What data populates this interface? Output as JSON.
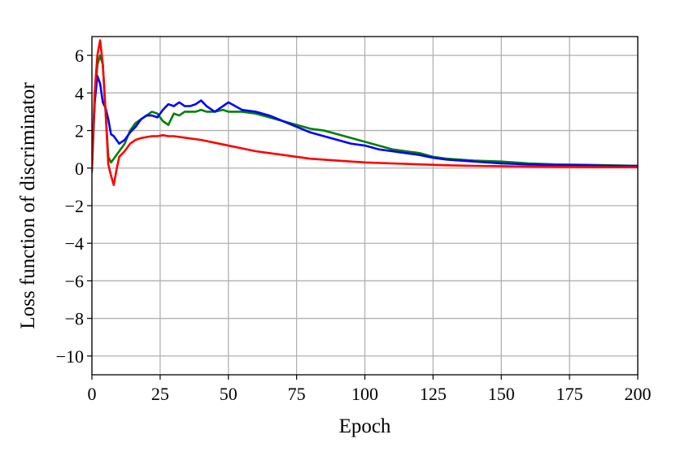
{
  "chart_data": {
    "type": "line",
    "title": "",
    "xlabel": "Epoch",
    "ylabel": "Loss function of discriminator",
    "xlim": [
      0,
      200
    ],
    "ylim": [
      -11,
      7
    ],
    "xticks": [
      0,
      25,
      50,
      75,
      100,
      125,
      150,
      175,
      200
    ],
    "yticks": [
      6,
      4,
      2,
      0,
      -2,
      -4,
      -6,
      -8,
      -10
    ],
    "xtick_labels": [
      "0",
      "25",
      "50",
      "75",
      "100",
      "125",
      "150",
      "175",
      "200"
    ],
    "ytick_labels": [
      "6",
      "4",
      "2",
      "0",
      "−2",
      "−4",
      "−6",
      "−8",
      "−10"
    ],
    "grid": true,
    "legend": "none",
    "series": [
      {
        "color": "#008000",
        "x": [
          0,
          1,
          2,
          3,
          4,
          5,
          6,
          7,
          8,
          10,
          12,
          14,
          16,
          18,
          20,
          22,
          24,
          26,
          28,
          30,
          32,
          34,
          36,
          38,
          40,
          42,
          45,
          48,
          50,
          55,
          60,
          65,
          70,
          75,
          80,
          85,
          90,
          95,
          100,
          105,
          110,
          115,
          120,
          125,
          130,
          140,
          150,
          160,
          170,
          180,
          190,
          200
        ],
        "y": [
          -0.2,
          3.5,
          5.5,
          6.0,
          5.5,
          3.0,
          0.6,
          0.3,
          0.5,
          0.9,
          1.3,
          2.0,
          2.4,
          2.6,
          2.8,
          3.0,
          2.9,
          2.5,
          2.3,
          2.9,
          2.8,
          3.0,
          3.0,
          3.0,
          3.1,
          3.0,
          3.0,
          3.1,
          3.0,
          3.0,
          2.9,
          2.7,
          2.5,
          2.3,
          2.1,
          2.0,
          1.8,
          1.6,
          1.4,
          1.2,
          1.0,
          0.9,
          0.8,
          0.6,
          0.5,
          0.4,
          0.35,
          0.25,
          0.2,
          0.18,
          0.15,
          0.12
        ]
      },
      {
        "color": "#0000ff",
        "x": [
          0,
          1,
          2,
          3,
          4,
          5,
          6,
          7,
          8,
          10,
          12,
          14,
          16,
          18,
          20,
          22,
          24,
          26,
          28,
          30,
          32,
          34,
          36,
          38,
          40,
          42,
          45,
          48,
          50,
          55,
          60,
          65,
          70,
          75,
          80,
          85,
          90,
          95,
          100,
          105,
          110,
          115,
          120,
          125,
          130,
          140,
          150,
          160,
          170,
          180,
          190,
          200
        ],
        "y": [
          0.3,
          3.5,
          4.9,
          4.5,
          3.5,
          3.2,
          2.6,
          1.8,
          1.7,
          1.3,
          1.5,
          1.9,
          2.2,
          2.6,
          2.8,
          2.8,
          2.7,
          3.1,
          3.4,
          3.3,
          3.5,
          3.3,
          3.3,
          3.4,
          3.6,
          3.3,
          3.0,
          3.3,
          3.5,
          3.1,
          3.0,
          2.8,
          2.5,
          2.2,
          1.9,
          1.7,
          1.5,
          1.3,
          1.2,
          1.0,
          0.9,
          0.8,
          0.7,
          0.55,
          0.45,
          0.35,
          0.25,
          0.2,
          0.15,
          0.15,
          0.12,
          0.12
        ]
      },
      {
        "color": "#ff0000",
        "x": [
          0,
          1,
          2,
          3,
          4,
          5,
          6,
          7,
          8,
          9,
          10,
          12,
          14,
          16,
          18,
          20,
          22,
          24,
          26,
          28,
          30,
          35,
          40,
          45,
          50,
          55,
          60,
          65,
          70,
          75,
          80,
          90,
          100,
          110,
          120,
          130,
          140,
          150,
          160,
          170,
          180,
          190,
          200
        ],
        "y": [
          0.0,
          4.0,
          6.0,
          6.8,
          5.5,
          3.0,
          0.2,
          -0.4,
          -0.9,
          -0.1,
          0.6,
          0.9,
          1.3,
          1.5,
          1.6,
          1.65,
          1.7,
          1.7,
          1.75,
          1.7,
          1.7,
          1.6,
          1.5,
          1.35,
          1.2,
          1.05,
          0.9,
          0.8,
          0.7,
          0.6,
          0.5,
          0.4,
          0.3,
          0.25,
          0.2,
          0.15,
          0.12,
          0.1,
          0.08,
          0.07,
          0.06,
          0.05,
          0.05
        ]
      }
    ]
  }
}
